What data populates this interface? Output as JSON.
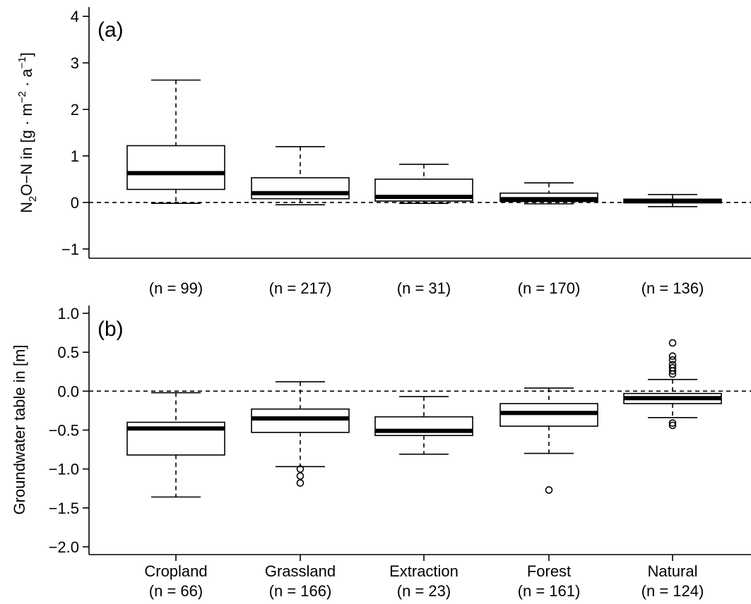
{
  "chart_data": [
    {
      "type": "box",
      "panel_label": "(a)",
      "ylabel_main": "N",
      "ylabel_sub": "2",
      "ylabel_mid": "O−N  in [g · m",
      "ylabel_sup1": "−2",
      "ylabel_dot": " · a",
      "ylabel_sup2": "−1",
      "ylabel_end": "]",
      "ylim": [
        -1.2,
        4.2
      ],
      "yticks": [
        -1,
        0,
        1,
        2,
        3,
        4
      ],
      "ytick_labels": [
        "−1",
        "0",
        "1",
        "2",
        "3",
        "4"
      ],
      "reference_line": 0,
      "categories": [
        "Cropland",
        "Grassland",
        "Extraction",
        "Forest",
        "Natural"
      ],
      "n_labels": [
        "(n = 99)",
        "(n = 217)",
        "(n = 31)",
        "(n = 170)",
        "(n = 136)"
      ],
      "boxes": [
        {
          "whisker_low": -0.02,
          "q1": 0.28,
          "median": 0.63,
          "q3": 1.22,
          "whisker_high": 2.63,
          "outliers": []
        },
        {
          "whisker_low": -0.05,
          "q1": 0.08,
          "median": 0.2,
          "q3": 0.53,
          "whisker_high": 1.2,
          "outliers": []
        },
        {
          "whisker_low": -0.02,
          "q1": 0.03,
          "median": 0.12,
          "q3": 0.5,
          "whisker_high": 0.82,
          "outliers": []
        },
        {
          "whisker_low": -0.03,
          "q1": 0.02,
          "median": 0.07,
          "q3": 0.2,
          "whisker_high": 0.42,
          "outliers": []
        },
        {
          "whisker_low": -0.09,
          "q1": -0.01,
          "median": 0.03,
          "q3": 0.07,
          "whisker_high": 0.17,
          "outliers": []
        }
      ]
    },
    {
      "type": "box",
      "panel_label": "(b)",
      "ylabel": "Groundwater table in [m]",
      "ylim": [
        -2.1,
        1.1
      ],
      "yticks": [
        -2.0,
        -1.5,
        -1.0,
        -0.5,
        0.0,
        0.5,
        1.0
      ],
      "ytick_labels": [
        "−2.0",
        "−1.5",
        "−1.0",
        "−0.5",
        "0.0",
        "0.5",
        "1.0"
      ],
      "reference_line": 0,
      "categories": [
        "Cropland",
        "Grassland",
        "Extraction",
        "Forest",
        "Natural"
      ],
      "n_labels": [
        "(n = 66)",
        "(n = 166)",
        "(n = 23)",
        "(n = 161)",
        "(n = 124)"
      ],
      "boxes": [
        {
          "whisker_low": -1.36,
          "q1": -0.82,
          "median": -0.48,
          "q3": -0.4,
          "whisker_high": -0.02,
          "outliers": []
        },
        {
          "whisker_low": -0.97,
          "q1": -0.53,
          "median": -0.35,
          "q3": -0.23,
          "whisker_high": 0.12,
          "outliers": [
            -1.0,
            -1.09,
            -1.18
          ]
        },
        {
          "whisker_low": -0.81,
          "q1": -0.57,
          "median": -0.51,
          "q3": -0.33,
          "whisker_high": -0.07,
          "outliers": []
        },
        {
          "whisker_low": -0.8,
          "q1": -0.45,
          "median": -0.28,
          "q3": -0.16,
          "whisker_high": 0.04,
          "outliers": [
            -1.27
          ]
        },
        {
          "whisker_low": -0.34,
          "q1": -0.16,
          "median": -0.09,
          "q3": -0.03,
          "whisker_high": 0.15,
          "outliers": [
            0.62,
            0.45,
            0.4,
            0.34,
            0.3,
            0.26,
            0.22,
            -0.41,
            -0.44
          ]
        }
      ]
    }
  ]
}
